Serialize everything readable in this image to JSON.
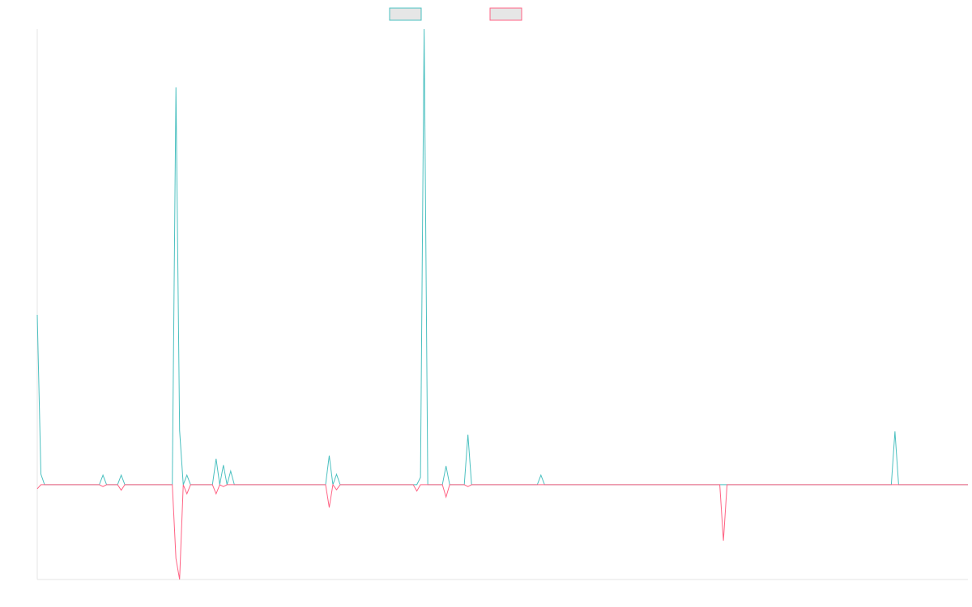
{
  "chart_data": {
    "type": "line",
    "ylim": [
      -20.8,
      100
    ],
    "series": [
      {
        "color": "#4bc0c0",
        "values": [
          37.3,
          2.3,
          0,
          0,
          0,
          0,
          0,
          0,
          0,
          0,
          0,
          0,
          0,
          0,
          0,
          0,
          0,
          0,
          2.1,
          0,
          0,
          0,
          0,
          2.1,
          0,
          0,
          0,
          0,
          0,
          0,
          0,
          0,
          0,
          0,
          0,
          0,
          0,
          0,
          87.2,
          11.9,
          0,
          2.1,
          0,
          0,
          0,
          0,
          0,
          0,
          0,
          5.7,
          0,
          4.3,
          0,
          3.0,
          0,
          0,
          0,
          0,
          0,
          0,
          0,
          0,
          0,
          0,
          0,
          0,
          0,
          0,
          0,
          0,
          0,
          0,
          0,
          0,
          0,
          0,
          0,
          0,
          0,
          0,
          6.4,
          0,
          2.3,
          0,
          0,
          0,
          0,
          0,
          0,
          0,
          0,
          0,
          0,
          0,
          0,
          0,
          0,
          0,
          0,
          0,
          0,
          0,
          0,
          0,
          0,
          1.6,
          100,
          0,
          0,
          0,
          0,
          0,
          4.1,
          0,
          0,
          0,
          0,
          0,
          11.0,
          0,
          0,
          0,
          0,
          0,
          0,
          0,
          0,
          0,
          0,
          0,
          0,
          0,
          0,
          0,
          0,
          0,
          0,
          0,
          2.1,
          0,
          0,
          0,
          0,
          0,
          0,
          0,
          0,
          0,
          0,
          0,
          0,
          0,
          0,
          0,
          0,
          0,
          0,
          0,
          0,
          0,
          0,
          0,
          0,
          0,
          0,
          0,
          0,
          0,
          0,
          0,
          0,
          0,
          0,
          0,
          0,
          0,
          0,
          0,
          0,
          0,
          0,
          0,
          0,
          0,
          0,
          0,
          0,
          0,
          0,
          0,
          0,
          0,
          0,
          0,
          0,
          0,
          0,
          0,
          0,
          0,
          0,
          0,
          0,
          0,
          0,
          0,
          0,
          0,
          0,
          0,
          0,
          0,
          0,
          0,
          0,
          0,
          0,
          0,
          0,
          0,
          0,
          0,
          0,
          0,
          0,
          0,
          0,
          0,
          0,
          0,
          0,
          0,
          0,
          0,
          0,
          11.7,
          0,
          0,
          0,
          0,
          0,
          0,
          0,
          0,
          0,
          0,
          0,
          0,
          0,
          0,
          0,
          0,
          0,
          0,
          0,
          0
        ]
      },
      {
        "color": "#ff6384",
        "values": [
          -0.9,
          0,
          0,
          0,
          0,
          0,
          0,
          0,
          0,
          0,
          0,
          0,
          0,
          0,
          0,
          0,
          0,
          0,
          -0.4,
          0,
          0,
          0,
          0,
          -1.2,
          0,
          0,
          0,
          0,
          0,
          0,
          0,
          0,
          0,
          0,
          0,
          0,
          0,
          0,
          -16.2,
          -20.8,
          0,
          -2.0,
          0,
          0,
          0,
          0,
          0,
          0,
          0,
          -2.0,
          0,
          -0.4,
          0,
          0,
          0,
          0,
          0,
          0,
          0,
          0,
          0,
          0,
          0,
          0,
          0,
          0,
          0,
          0,
          0,
          0,
          0,
          0,
          0,
          0,
          0,
          0,
          0,
          0,
          0,
          0,
          -5.0,
          0,
          -1.1,
          0,
          0,
          0,
          0,
          0,
          0,
          0,
          0,
          0,
          0,
          0,
          0,
          0,
          0,
          0,
          0,
          0,
          0,
          0,
          0,
          0,
          -1.4,
          0,
          0,
          0,
          0,
          0,
          0,
          0,
          -2.7,
          0,
          0,
          0,
          0,
          0,
          -0.4,
          0,
          0,
          0,
          0,
          0,
          0,
          0,
          0,
          0,
          0,
          0,
          0,
          0,
          0,
          0,
          0,
          0,
          0,
          0,
          0,
          0,
          0,
          0,
          0,
          0,
          0,
          0,
          0,
          0,
          0,
          0,
          0,
          0,
          0,
          0,
          0,
          0,
          0,
          0,
          0,
          0,
          0,
          0,
          0,
          0,
          0,
          0,
          0,
          0,
          0,
          0,
          0,
          0,
          0,
          0,
          0,
          0,
          0,
          0,
          0,
          0,
          0,
          0,
          0,
          0,
          0,
          0,
          0,
          0,
          -12.3,
          0,
          0,
          0,
          0,
          0,
          0,
          0,
          0,
          0,
          0,
          0,
          0,
          0,
          0,
          0,
          0,
          0,
          0,
          0,
          0,
          0,
          0,
          0,
          0,
          0,
          0,
          0,
          0,
          0,
          0,
          0,
          0,
          0,
          0,
          0,
          0,
          0,
          0,
          0,
          0,
          0,
          0,
          0,
          0,
          0,
          0,
          0,
          0,
          0,
          0,
          0,
          0,
          0,
          0,
          0,
          0,
          0,
          0,
          0,
          0,
          0,
          0,
          0,
          0,
          0,
          0,
          0
        ]
      }
    ]
  }
}
